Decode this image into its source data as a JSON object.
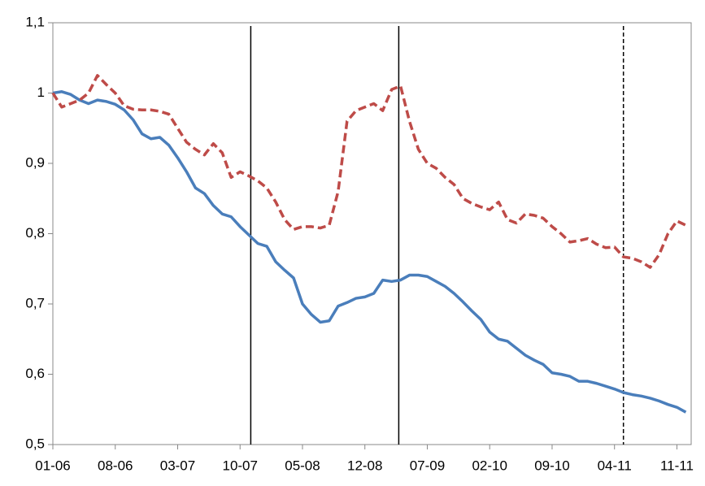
{
  "chart_data": {
    "type": "line",
    "categories": [
      "01-06",
      null,
      null,
      null,
      null,
      null,
      null,
      "08-06",
      null,
      null,
      null,
      null,
      null,
      null,
      "03-07",
      null,
      null,
      null,
      null,
      null,
      null,
      "10-07",
      null,
      null,
      null,
      null,
      null,
      null,
      "05-08",
      null,
      null,
      null,
      null,
      null,
      null,
      "12-08",
      null,
      null,
      null,
      null,
      null,
      null,
      "07-09",
      null,
      null,
      null,
      null,
      null,
      null,
      "02-10",
      null,
      null,
      null,
      null,
      null,
      null,
      "09-10",
      null,
      null,
      null,
      null,
      null,
      null,
      "04-11",
      null,
      null,
      null,
      null,
      null,
      null,
      "11-11",
      null
    ],
    "series": [
      {
        "color": "#4a7ebb",
        "style": "solid",
        "values": [
          1.0,
          1.002,
          0.998,
          0.99,
          0.985,
          0.99,
          0.988,
          0.984,
          0.976,
          0.962,
          0.942,
          0.935,
          0.937,
          0.926,
          0.908,
          0.888,
          0.865,
          0.857,
          0.84,
          0.828,
          0.824,
          0.81,
          0.798,
          0.786,
          0.782,
          0.76,
          0.748,
          0.737,
          0.7,
          0.685,
          0.674,
          0.676,
          0.697,
          0.702,
          0.708,
          0.71,
          0.715,
          0.734,
          0.732,
          0.734,
          0.741,
          0.741,
          0.739,
          0.732,
          0.725,
          0.715,
          0.703,
          0.69,
          0.678,
          0.66,
          0.65,
          0.647,
          0.637,
          0.627,
          0.62,
          0.614,
          0.602,
          0.6,
          0.597,
          0.59,
          0.59,
          0.587,
          0.583,
          0.579,
          0.574,
          0.571,
          0.569,
          0.566,
          0.562,
          0.557,
          0.553,
          0.546
        ]
      },
      {
        "color": "#be4b48",
        "style": "dashed",
        "values": [
          1.0,
          0.98,
          0.985,
          0.99,
          1.0,
          1.025,
          1.012,
          1.0,
          0.982,
          0.977,
          0.976,
          0.976,
          0.974,
          0.97,
          0.95,
          0.93,
          0.92,
          0.912,
          0.928,
          0.915,
          0.88,
          0.888,
          0.882,
          0.875,
          0.865,
          0.845,
          0.82,
          0.806,
          0.81,
          0.81,
          0.808,
          0.812,
          0.86,
          0.96,
          0.975,
          0.98,
          0.985,
          0.975,
          1.005,
          1.01,
          0.96,
          0.92,
          0.9,
          0.893,
          0.88,
          0.87,
          0.85,
          0.843,
          0.838,
          0.834,
          0.845,
          0.82,
          0.815,
          0.828,
          0.826,
          0.822,
          0.81,
          0.8,
          0.788,
          0.79,
          0.793,
          0.785,
          0.78,
          0.781,
          0.767,
          0.765,
          0.76,
          0.752,
          0.77,
          0.8,
          0.818,
          0.812
        ]
      }
    ],
    "vlines": [
      {
        "x": 22.2,
        "style": "solid"
      },
      {
        "x": 38.8,
        "style": "solid"
      },
      {
        "x": 64,
        "style": "dashed"
      }
    ],
    "ylim": [
      0.5,
      1.1
    ],
    "yticks": [
      {
        "value": 0.5,
        "label": "0,5"
      },
      {
        "value": 0.6,
        "label": "0,6"
      },
      {
        "value": 0.7,
        "label": "0,7"
      },
      {
        "value": 0.8,
        "label": "0,8"
      },
      {
        "value": 0.9,
        "label": "0,9"
      },
      1,
      {
        "value": 1.1,
        "label": "1,1"
      }
    ],
    "grid": false
  }
}
